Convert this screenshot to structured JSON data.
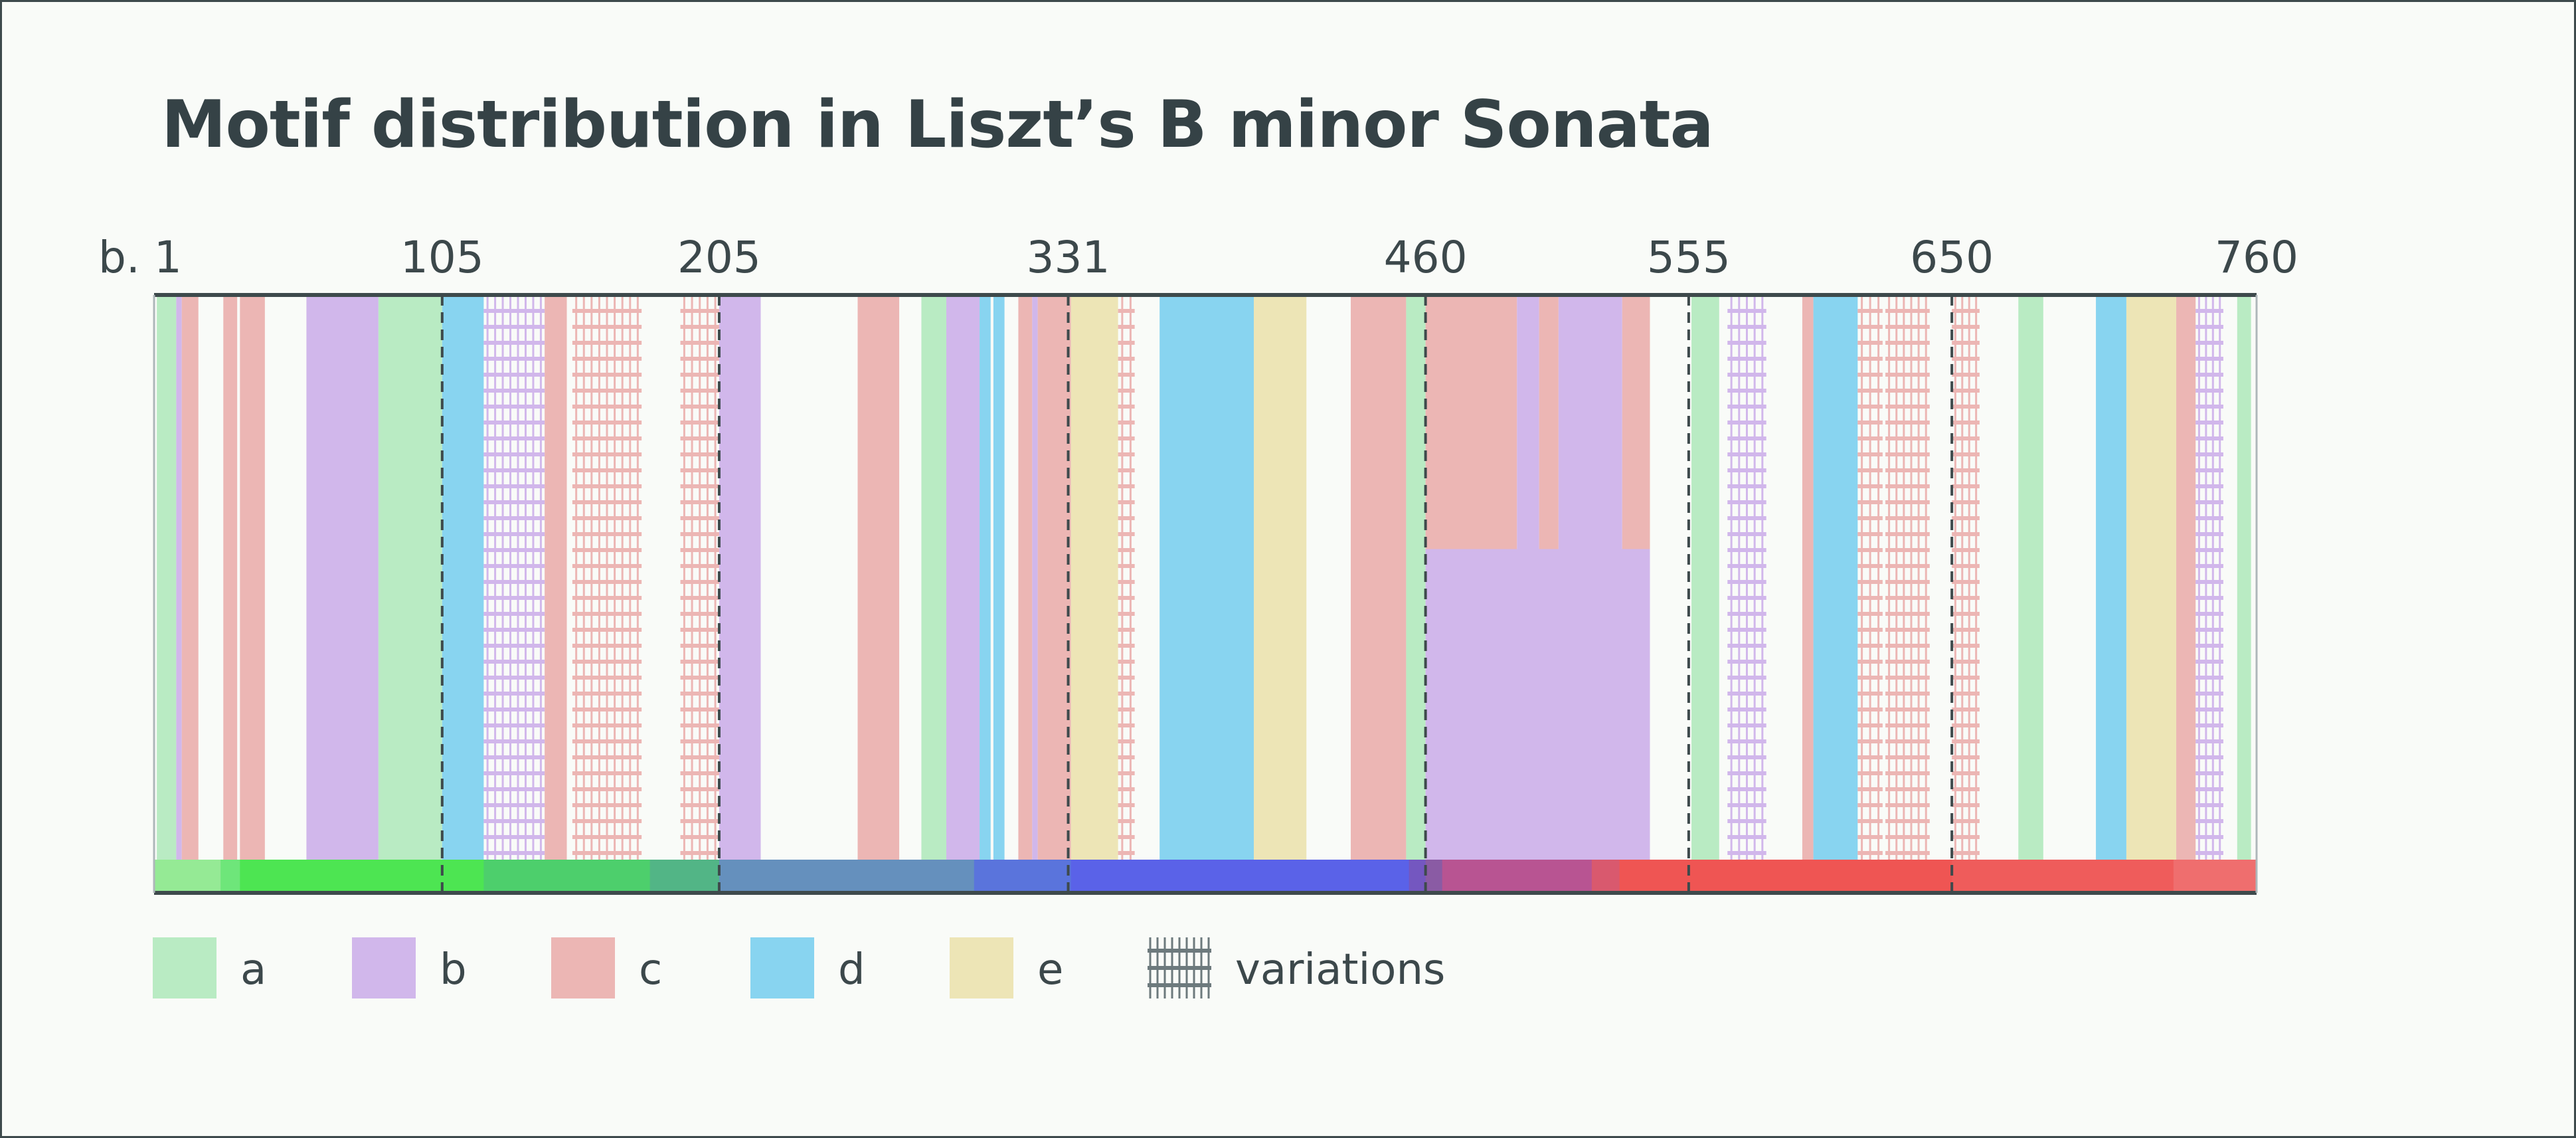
{
  "title": "Motif distribution in Liszt’s B minor Sonata",
  "chart_data": {
    "type": "bar",
    "subtype": "timeline-band",
    "title": "Motif distribution in Liszt’s B minor Sonata",
    "xlabel": "",
    "ylabel": "",
    "x_unit_prefix": "b.",
    "xlim": [
      1,
      760
    ],
    "ticks": [
      {
        "bar": 1,
        "label": "b. 1",
        "divider": false
      },
      {
        "bar": 105,
        "label": "105",
        "divider": true
      },
      {
        "bar": 205,
        "label": "205",
        "divider": true
      },
      {
        "bar": 331,
        "label": "331",
        "divider": true
      },
      {
        "bar": 460,
        "label": "460",
        "divider": true
      },
      {
        "bar": 555,
        "label": "555",
        "divider": true
      },
      {
        "bar": 650,
        "label": "650",
        "divider": true
      },
      {
        "bar": 760,
        "label": "760",
        "divider": false
      }
    ],
    "motifs": [
      {
        "id": "a",
        "label": "a",
        "color": "#b9ebc3"
      },
      {
        "id": "b",
        "label": "b",
        "color": "#d1b7eb"
      },
      {
        "id": "c",
        "label": "c",
        "color": "#ecb6b4"
      },
      {
        "id": "d",
        "label": "d",
        "color": "#88d4f0"
      },
      {
        "id": "e",
        "label": "e",
        "color": "#ede5b6"
      }
    ],
    "variations_label": "variations",
    "variations_legend_color": "#6d7a7d",
    "segments": [
      {
        "motif": "a",
        "start": 2,
        "end": 9
      },
      {
        "motif": "b",
        "start": 9,
        "end": 11
      },
      {
        "motif": "c",
        "start": 11,
        "end": 17
      },
      {
        "motif": "c",
        "start": 26,
        "end": 31
      },
      {
        "motif": "c",
        "start": 32,
        "end": 41
      },
      {
        "motif": "b",
        "start": 56,
        "end": 82
      },
      {
        "motif": "a",
        "start": 82,
        "end": 105
      },
      {
        "motif": "d",
        "start": 105,
        "end": 120
      },
      {
        "motif": "b",
        "start": 120,
        "end": 142,
        "variation": true
      },
      {
        "motif": "c",
        "start": 142,
        "end": 150
      },
      {
        "motif": "c",
        "start": 152,
        "end": 177,
        "variation": true
      },
      {
        "motif": "c",
        "start": 191,
        "end": 205,
        "variation": true
      },
      {
        "motif": "b",
        "start": 205,
        "end": 220
      },
      {
        "motif": "c",
        "start": 255,
        "end": 270
      },
      {
        "motif": "a",
        "start": 278,
        "end": 287
      },
      {
        "motif": "b",
        "start": 287,
        "end": 299
      },
      {
        "motif": "d",
        "start": 299,
        "end": 303
      },
      {
        "motif": "d",
        "start": 304,
        "end": 308
      },
      {
        "motif": "c",
        "start": 313,
        "end": 318
      },
      {
        "motif": "b",
        "start": 318,
        "end": 320
      },
      {
        "motif": "c",
        "start": 320,
        "end": 332
      },
      {
        "motif": "e",
        "start": 332,
        "end": 349
      },
      {
        "motif": "c",
        "start": 349,
        "end": 355,
        "variation": true
      },
      {
        "motif": "d",
        "start": 364,
        "end": 398
      },
      {
        "motif": "e",
        "start": 398,
        "end": 417
      },
      {
        "motif": "c",
        "start": 433,
        "end": 453
      },
      {
        "motif": "a",
        "start": 453,
        "end": 460
      },
      {
        "motif": "c",
        "start": 460,
        "end": 493,
        "y0": 0.55,
        "y1": 1
      },
      {
        "motif": "b",
        "start": 460,
        "end": 541,
        "y0": 0,
        "y1": 0.55
      },
      {
        "motif": "b",
        "start": 493,
        "end": 501,
        "y0": 0.55,
        "y1": 1
      },
      {
        "motif": "c",
        "start": 501,
        "end": 508,
        "y0": 0.55,
        "y1": 1
      },
      {
        "motif": "b",
        "start": 508,
        "end": 531,
        "y0": 0.55,
        "y1": 1
      },
      {
        "motif": "c",
        "start": 531,
        "end": 541,
        "y0": 0.55,
        "y1": 1
      },
      {
        "motif": "a",
        "start": 556,
        "end": 566
      },
      {
        "motif": "b",
        "start": 569,
        "end": 583,
        "variation": true
      },
      {
        "motif": "c",
        "start": 596,
        "end": 600
      },
      {
        "motif": "d",
        "start": 600,
        "end": 616
      },
      {
        "motif": "c",
        "start": 616,
        "end": 625,
        "variation": true
      },
      {
        "motif": "c",
        "start": 626,
        "end": 642,
        "variation": true
      },
      {
        "motif": "c",
        "start": 650,
        "end": 660,
        "variation": true
      },
      {
        "motif": "a",
        "start": 674,
        "end": 683
      },
      {
        "motif": "d",
        "start": 702,
        "end": 713
      },
      {
        "motif": "e",
        "start": 713,
        "end": 731
      },
      {
        "motif": "c",
        "start": 731,
        "end": 738
      },
      {
        "motif": "b",
        "start": 738,
        "end": 748,
        "variation": true
      },
      {
        "motif": "a",
        "start": 753,
        "end": 758
      }
    ],
    "keys": [
      {
        "start": 1,
        "end": 25,
        "color": "#95ea95"
      },
      {
        "start": 25,
        "end": 32,
        "color": "#6ee67a"
      },
      {
        "start": 32,
        "end": 120,
        "color": "#4de552"
      },
      {
        "start": 120,
        "end": 180,
        "color": "#4dcf6c"
      },
      {
        "start": 180,
        "end": 205,
        "color": "#52b586"
      },
      {
        "start": 205,
        "end": 297,
        "color": "#6590bd"
      },
      {
        "start": 297,
        "end": 332,
        "color": "#5a74dc"
      },
      {
        "start": 332,
        "end": 454,
        "color": "#5a62e8"
      },
      {
        "start": 454,
        "end": 460,
        "color": "#7457c0"
      },
      {
        "start": 460,
        "end": 466,
        "color": "#8a5ba4"
      },
      {
        "start": 466,
        "end": 520,
        "color": "#b85492"
      },
      {
        "start": 520,
        "end": 530,
        "color": "#d9596e"
      },
      {
        "start": 530,
        "end": 650,
        "color": "#ef5553"
      },
      {
        "start": 650,
        "end": 730,
        "color": "#ef5c5b"
      },
      {
        "start": 730,
        "end": 760,
        "color": "#ef6e6e"
      }
    ]
  }
}
